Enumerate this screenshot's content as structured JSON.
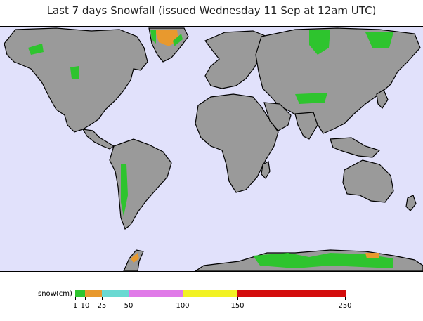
{
  "title": "Last 7 days Snowfall (issued Wednesday 11 Sep at 12am UTC)",
  "legend": {
    "label": "snow(cm)",
    "ticks": [
      "1",
      "10",
      "25",
      "50",
      "100",
      "150",
      "250"
    ],
    "bins": [
      {
        "from": "1",
        "to": "10",
        "color": "#2ec42e"
      },
      {
        "from": "10",
        "to": "25",
        "color": "#e8992e"
      },
      {
        "from": "25",
        "to": "50",
        "color": "#6ad9d2"
      },
      {
        "from": "50",
        "to": "100",
        "color": "#e07ae8"
      },
      {
        "from": "100",
        "to": "150",
        "color": "#f2f224"
      },
      {
        "from": "150",
        "to": "250",
        "color": "#d40d0d"
      }
    ]
  },
  "colors": {
    "ocean": "#e1e1fb",
    "land": "#999999",
    "snow_light": "#2ec42e",
    "snow_moderate": "#e8992e"
  }
}
